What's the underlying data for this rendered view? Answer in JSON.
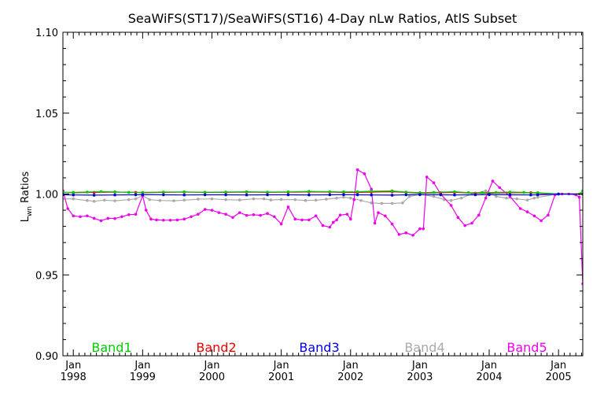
{
  "chart_data": {
    "type": "line",
    "title": "SeaWiFS(ST17)/SeaWiFS(ST16) 4-Day nLw Ratios, AtlS Subset",
    "ylabel_main": "L",
    "ylabel_sub": "wn",
    "ylabel_rest": " Ratios",
    "xlabel": "",
    "xlim": [
      1997.85,
      2005.35
    ],
    "ylim": [
      0.9,
      1.1
    ],
    "yticks": [
      {
        "value": 0.9,
        "label": "0.90"
      },
      {
        "value": 0.95,
        "label": "0.95"
      },
      {
        "value": 1.0,
        "label": "1.00"
      },
      {
        "value": 1.05,
        "label": "1.05"
      },
      {
        "value": 1.1,
        "label": "1.10"
      }
    ],
    "xticks": [
      {
        "value": 1998,
        "label_top": "Jan",
        "label_bottom": "1998"
      },
      {
        "value": 1999,
        "label_top": "Jan",
        "label_bottom": "1999"
      },
      {
        "value": 2000,
        "label_top": "Jan",
        "label_bottom": "2000"
      },
      {
        "value": 2001,
        "label_top": "Jan",
        "label_bottom": "2001"
      },
      {
        "value": 2002,
        "label_top": "Jan",
        "label_bottom": "2002"
      },
      {
        "value": 2003,
        "label_top": "Jan",
        "label_bottom": "2003"
      },
      {
        "value": 2004,
        "label_top": "Jan",
        "label_bottom": "2004"
      },
      {
        "value": 2005,
        "label_top": "Jan",
        "label_bottom": "2005"
      }
    ],
    "legend_placement": "bottom",
    "grid": false,
    "series": [
      {
        "name": "Band1",
        "color": "#00cc00",
        "points": [
          [
            1997.85,
            1.001
          ],
          [
            1998.0,
            1.001
          ],
          [
            1998.2,
            1.0012
          ],
          [
            1998.4,
            1.0015
          ],
          [
            1998.6,
            1.0013
          ],
          [
            1998.8,
            1.001
          ],
          [
            1999.0,
            1.001
          ],
          [
            1999.3,
            1.0012
          ],
          [
            1999.6,
            1.0013
          ],
          [
            1999.9,
            1.0011
          ],
          [
            2000.2,
            1.0012
          ],
          [
            2000.5,
            1.0014
          ],
          [
            2000.8,
            1.0012
          ],
          [
            2001.1,
            1.0013
          ],
          [
            2001.4,
            1.0016
          ],
          [
            2001.7,
            1.0014
          ],
          [
            2001.9,
            1.0013
          ],
          [
            2002.1,
            1.0014
          ],
          [
            2002.3,
            1.0017
          ],
          [
            2002.6,
            1.0019
          ],
          [
            2002.8,
            1.0012
          ],
          [
            2003.0,
            1.0008
          ],
          [
            2003.2,
            1.001
          ],
          [
            2003.5,
            1.0014
          ],
          [
            2003.7,
            1.0009
          ],
          [
            2003.9,
            1.0008
          ],
          [
            2004.1,
            1.001
          ],
          [
            2004.3,
            1.0012
          ],
          [
            2004.5,
            1.001
          ],
          [
            2004.7,
            1.0008
          ],
          [
            2005.0,
            1.0
          ],
          [
            2005.3,
            1.0
          ],
          [
            2005.35,
            1.002
          ]
        ]
      },
      {
        "name": "Band2",
        "color": "#ee0000",
        "points": [
          [
            1997.85,
            1.001
          ],
          [
            1998.0,
            1.0008
          ],
          [
            1998.3,
            1.001
          ],
          [
            1998.6,
            1.0012
          ],
          [
            1998.9,
            1.001
          ],
          [
            1999.0,
            1.0008
          ],
          [
            1999.3,
            1.001
          ],
          [
            1999.6,
            1.0012
          ],
          [
            1999.9,
            1.001
          ],
          [
            2000.2,
            1.001
          ],
          [
            2000.5,
            1.0012
          ],
          [
            2000.8,
            1.001
          ],
          [
            2001.1,
            1.0011
          ],
          [
            2001.4,
            1.0013
          ],
          [
            2001.7,
            1.0012
          ],
          [
            2001.9,
            1.001
          ],
          [
            2002.1,
            1.001
          ],
          [
            2002.3,
            1.0012
          ],
          [
            2002.6,
            1.0014
          ],
          [
            2002.8,
            1.001
          ],
          [
            2003.0,
            1.0005
          ],
          [
            2003.3,
            1.0008
          ],
          [
            2003.5,
            1.001
          ],
          [
            2003.8,
            1.0005
          ],
          [
            2004.0,
            1.0005
          ],
          [
            2004.3,
            1.0008
          ],
          [
            2004.6,
            1.0008
          ],
          [
            2004.7,
            1.0005
          ],
          [
            2005.0,
            1.0
          ],
          [
            2005.35,
            1.0
          ]
        ]
      },
      {
        "name": "Band3",
        "color": "#0000dd",
        "points": [
          [
            1997.85,
            0.9995
          ],
          [
            1998.0,
            0.9994
          ],
          [
            1998.3,
            0.9993
          ],
          [
            1998.6,
            0.9994
          ],
          [
            1998.9,
            0.9995
          ],
          [
            1999.0,
            0.9996
          ],
          [
            1999.3,
            0.9995
          ],
          [
            1999.6,
            0.9994
          ],
          [
            1999.9,
            0.9995
          ],
          [
            2000.2,
            0.9995
          ],
          [
            2000.5,
            0.9994
          ],
          [
            2000.8,
            0.9995
          ],
          [
            2001.1,
            0.9995
          ],
          [
            2001.4,
            0.9994
          ],
          [
            2001.7,
            0.9995
          ],
          [
            2001.9,
            0.9996
          ],
          [
            2002.1,
            0.9995
          ],
          [
            2002.3,
            0.9994
          ],
          [
            2002.6,
            0.9993
          ],
          [
            2002.8,
            0.9995
          ],
          [
            2003.0,
            0.9996
          ],
          [
            2003.3,
            0.9995
          ],
          [
            2003.5,
            0.9994
          ],
          [
            2003.8,
            0.9995
          ],
          [
            2004.0,
            0.9996
          ],
          [
            2004.3,
            0.9995
          ],
          [
            2004.6,
            0.9994
          ],
          [
            2004.7,
            0.9995
          ],
          [
            2005.0,
            1.0
          ],
          [
            2005.35,
            1.0
          ]
        ]
      },
      {
        "name": "Band4",
        "color": "#aaaaaa",
        "points": [
          [
            1997.85,
            0.997
          ],
          [
            1998.0,
            0.997
          ],
          [
            1998.2,
            0.996
          ],
          [
            1998.3,
            0.9955
          ],
          [
            1998.45,
            0.9962
          ],
          [
            1998.6,
            0.9958
          ],
          [
            1998.8,
            0.9965
          ],
          [
            1998.9,
            0.997
          ],
          [
            1999.0,
            0.999
          ],
          [
            1999.1,
            0.9965
          ],
          [
            1999.25,
            0.996
          ],
          [
            1999.45,
            0.9958
          ],
          [
            1999.6,
            0.9962
          ],
          [
            1999.8,
            0.9968
          ],
          [
            2000.0,
            0.997
          ],
          [
            2000.2,
            0.9965
          ],
          [
            2000.4,
            0.9963
          ],
          [
            2000.6,
            0.997
          ],
          [
            2000.75,
            0.997
          ],
          [
            2000.85,
            0.9963
          ],
          [
            2001.0,
            0.9966
          ],
          [
            2001.2,
            0.9965
          ],
          [
            2001.35,
            0.996
          ],
          [
            2001.5,
            0.9962
          ],
          [
            2001.65,
            0.9968
          ],
          [
            2001.8,
            0.9975
          ],
          [
            2001.9,
            0.998
          ],
          [
            2002.0,
            0.9975
          ],
          [
            2002.15,
            0.996
          ],
          [
            2002.3,
            0.9945
          ],
          [
            2002.45,
            0.9942
          ],
          [
            2002.6,
            0.9942
          ],
          [
            2002.75,
            0.9945
          ],
          [
            2002.85,
            0.9985
          ],
          [
            2003.0,
            0.9998
          ],
          [
            2003.2,
            0.9985
          ],
          [
            2003.35,
            0.9965
          ],
          [
            2003.45,
            0.996
          ],
          [
            2003.6,
            0.9975
          ],
          [
            2003.75,
            1.0
          ],
          [
            2003.95,
            1.002
          ],
          [
            2004.1,
            0.9985
          ],
          [
            2004.25,
            0.9975
          ],
          [
            2004.4,
            0.997
          ],
          [
            2004.55,
            0.9962
          ],
          [
            2004.65,
            0.9975
          ],
          [
            2004.7,
            0.998
          ],
          [
            2005.0,
            1.0
          ],
          [
            2005.35,
            1.0
          ]
        ]
      },
      {
        "name": "Band5",
        "color": "#ee00ee",
        "points": [
          [
            1997.85,
            1.002
          ],
          [
            1997.92,
            0.991
          ],
          [
            1998.0,
            0.9865
          ],
          [
            1998.1,
            0.986
          ],
          [
            1998.2,
            0.9865
          ],
          [
            1998.3,
            0.985
          ],
          [
            1998.4,
            0.9835
          ],
          [
            1998.5,
            0.985
          ],
          [
            1998.6,
            0.9848
          ],
          [
            1998.7,
            0.986
          ],
          [
            1998.8,
            0.9872
          ],
          [
            1998.9,
            0.9875
          ],
          [
            1999.0,
            0.999
          ],
          [
            1999.05,
            0.99
          ],
          [
            1999.12,
            0.9845
          ],
          [
            1999.2,
            0.984
          ],
          [
            1999.3,
            0.9838
          ],
          [
            1999.4,
            0.9838
          ],
          [
            1999.5,
            0.984
          ],
          [
            1999.6,
            0.9845
          ],
          [
            1999.7,
            0.986
          ],
          [
            1999.8,
            0.9875
          ],
          [
            1999.9,
            0.9905
          ],
          [
            2000.0,
            0.99
          ],
          [
            2000.1,
            0.9885
          ],
          [
            2000.2,
            0.9875
          ],
          [
            2000.3,
            0.9855
          ],
          [
            2000.4,
            0.9885
          ],
          [
            2000.5,
            0.9868
          ],
          [
            2000.6,
            0.9872
          ],
          [
            2000.7,
            0.9868
          ],
          [
            2000.8,
            0.988
          ],
          [
            2000.9,
            0.986
          ],
          [
            2001.0,
            0.9815
          ],
          [
            2001.1,
            0.992
          ],
          [
            2001.2,
            0.9845
          ],
          [
            2001.3,
            0.984
          ],
          [
            2001.4,
            0.984
          ],
          [
            2001.5,
            0.9865
          ],
          [
            2001.6,
            0.9805
          ],
          [
            2001.7,
            0.9795
          ],
          [
            2001.75,
            0.9825
          ],
          [
            2001.8,
            0.984
          ],
          [
            2001.85,
            0.987
          ],
          [
            2001.95,
            0.9875
          ],
          [
            2002.0,
            0.9845
          ],
          [
            2002.05,
            0.9965
          ],
          [
            2002.1,
            1.015
          ],
          [
            2002.2,
            1.0125
          ],
          [
            2002.3,
            1.003
          ],
          [
            2002.35,
            0.982
          ],
          [
            2002.4,
            0.9885
          ],
          [
            2002.5,
            0.9865
          ],
          [
            2002.6,
            0.9815
          ],
          [
            2002.7,
            0.975
          ],
          [
            2002.8,
            0.976
          ],
          [
            2002.9,
            0.9745
          ],
          [
            2003.0,
            0.9785
          ],
          [
            2003.05,
            0.9785
          ],
          [
            2003.1,
            1.0105
          ],
          [
            2003.2,
            1.007
          ],
          [
            2003.3,
            1.0
          ],
          [
            2003.45,
            0.993
          ],
          [
            2003.55,
            0.9855
          ],
          [
            2003.65,
            0.9805
          ],
          [
            2003.75,
            0.982
          ],
          [
            2003.85,
            0.987
          ],
          [
            2003.95,
            0.9975
          ],
          [
            2004.05,
            1.008
          ],
          [
            2004.15,
            1.004
          ],
          [
            2004.3,
            0.9985
          ],
          [
            2004.45,
            0.991
          ],
          [
            2004.55,
            0.989
          ],
          [
            2004.65,
            0.9865
          ],
          [
            2004.75,
            0.9835
          ],
          [
            2004.85,
            0.987
          ],
          [
            2004.95,
            0.9995
          ],
          [
            2005.05,
            1.0
          ],
          [
            2005.15,
            1.0
          ],
          [
            2005.25,
            0.9995
          ],
          [
            2005.3,
            0.998
          ],
          [
            2005.35,
            0.9445
          ]
        ]
      }
    ]
  }
}
